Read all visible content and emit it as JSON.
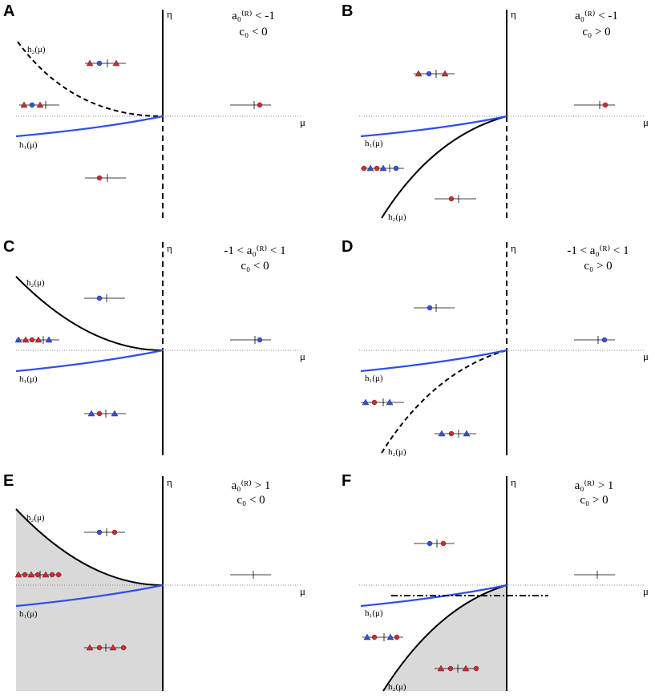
{
  "colors": {
    "blue": "#2f4fe8",
    "red": "#d6262c",
    "black": "#000000",
    "shade": "#d9d9d9",
    "dotted": "#888888"
  },
  "axis_labels": {
    "vertical": "η",
    "horizontal": "μ"
  },
  "panels": [
    {
      "id": "A",
      "condition_line1": "a₀⁽ᴿ⁾ < -1",
      "condition_line2": "c₀ < 0",
      "h1_label": "h₁(μ)",
      "h2_label": "h₂(μ)",
      "h2_style": "dashed",
      "shaded": false,
      "vertical_lower": "dashed",
      "vertical_upper": "solid",
      "glyph_rows": [
        {
          "markers": "triangle,circle-blue,triangle",
          "tick": 2,
          "color_seq": "red,blue,red"
        },
        {
          "markers": "triangle,circle,triangle",
          "tick": 2,
          "color_seq": "red,blue,red"
        },
        {
          "markers": "circle",
          "tick": 1,
          "color_seq": "red"
        },
        {
          "markers": "circle",
          "tick": 1,
          "color_seq": "red"
        }
      ]
    },
    {
      "id": "B",
      "condition_line1": "a₀⁽ᴿ⁾ < -1",
      "condition_line2": "c₀ > 0",
      "h1_label": "h₁(μ)",
      "h2_label": "h₂(μ)",
      "h2_style": "solid",
      "shaded": false,
      "vertical_lower": "dashed",
      "vertical_upper": "solid"
    },
    {
      "id": "C",
      "condition_line1": "-1 < a₀⁽ᴿ⁾ < 1",
      "condition_line2": "c₀ < 0",
      "h1_label": "h₁(μ)",
      "h2_label": "h₂(μ)",
      "h2_style": "solid",
      "shaded": false,
      "vertical_lower": "solid",
      "vertical_upper": "dashed"
    },
    {
      "id": "D",
      "condition_line1": "-1 < a₀⁽ᴿ⁾ < 1",
      "condition_line2": "c₀ > 0",
      "h1_label": "h₁(μ)",
      "h2_label": "h₂(μ)",
      "h2_style": "dashed",
      "shaded": false,
      "vertical_lower": "solid",
      "vertical_upper": "dashed"
    },
    {
      "id": "E",
      "condition_line1": "a₀⁽ᴿ⁾ > 1",
      "condition_line2": "c₀ < 0",
      "h1_label": "h₁(μ)",
      "h2_label": "h₂(μ)",
      "h2_style": "solid",
      "shaded": true,
      "vertical_lower": "solid",
      "vertical_upper": "solid"
    },
    {
      "id": "F",
      "condition_line1": "a₀⁽ᴿ⁾ > 1",
      "condition_line2": "c₀ > 0",
      "h1_label": "h₁(μ)",
      "h2_label": "h₂(μ)",
      "h2_style": "solid",
      "shaded": true,
      "vertical_lower": "solid",
      "vertical_upper": "solid"
    }
  ]
}
